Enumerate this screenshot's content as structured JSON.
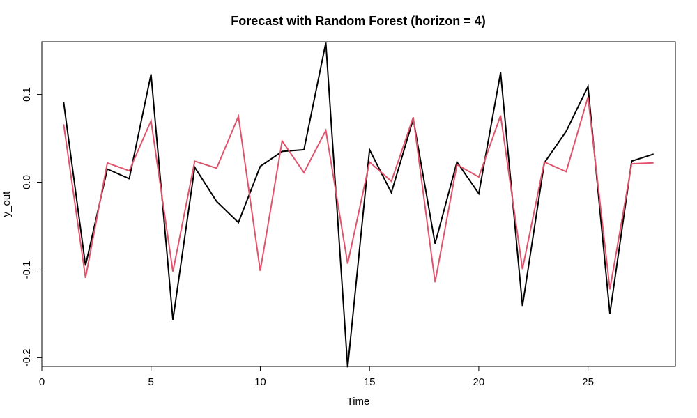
{
  "chart_data": {
    "type": "line",
    "title": "Forecast with Random Forest (horizon = 4)",
    "xlabel": "Time",
    "ylabel": "y_out",
    "xlim": [
      0,
      29
    ],
    "ylim": [
      -0.21,
      0.16
    ],
    "x_ticks": [
      0,
      5,
      10,
      15,
      20,
      25
    ],
    "x_tick_labels": [
      "0",
      "5",
      "10",
      "15",
      "20",
      "25"
    ],
    "y_ticks": [
      -0.2,
      -0.1,
      0.0,
      0.1
    ],
    "y_tick_labels": [
      "-0.2",
      "-0.1",
      "0.0",
      "0.1"
    ],
    "grid": false,
    "legend": "none",
    "x": [
      1,
      2,
      3,
      4,
      5,
      6,
      7,
      8,
      9,
      10,
      11,
      12,
      13,
      14,
      15,
      16,
      17,
      18,
      19,
      20,
      21,
      22,
      23,
      24,
      25,
      26,
      27,
      28
    ],
    "series": [
      {
        "color": "#000000",
        "values": [
          0.091,
          -0.095,
          0.015,
          0.004,
          0.123,
          -0.157,
          0.017,
          -0.022,
          -0.046,
          0.018,
          0.035,
          0.037,
          0.159,
          -0.211,
          0.037,
          -0.012,
          0.072,
          -0.07,
          0.023,
          -0.013,
          0.125,
          -0.141,
          0.022,
          0.058,
          0.109,
          -0.15,
          0.024,
          0.032
        ]
      },
      {
        "color": "#DF536B",
        "values": [
          0.066,
          -0.109,
          0.022,
          0.013,
          0.07,
          -0.102,
          0.024,
          0.016,
          0.075,
          -0.101,
          0.047,
          0.011,
          0.059,
          -0.093,
          0.023,
          0.001,
          0.074,
          -0.114,
          0.02,
          0.006,
          0.076,
          -0.099,
          0.023,
          0.012,
          0.097,
          -0.122,
          0.021,
          0.022
        ]
      }
    ]
  }
}
